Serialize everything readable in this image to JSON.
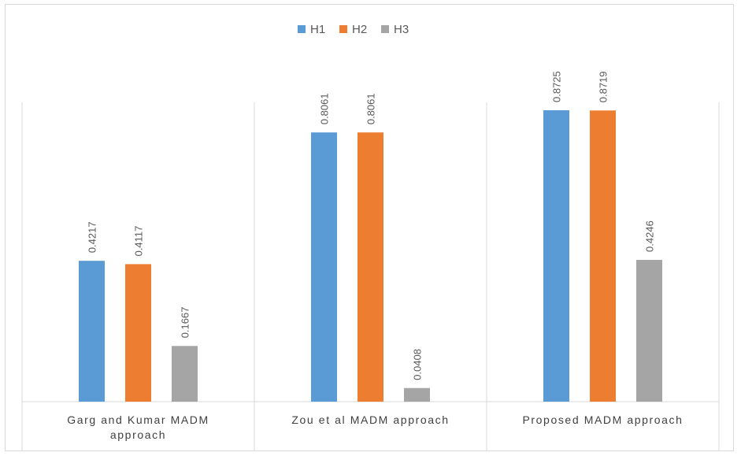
{
  "chart_data": {
    "type": "bar",
    "categories": [
      [
        "Garg and Kumar MADM",
        "approach"
      ],
      [
        "Zou et al MADM approach"
      ],
      [
        "Proposed MADM approach"
      ]
    ],
    "series": [
      {
        "name": "H1",
        "color": "#5b9bd5",
        "values": [
          0.4217,
          0.8061,
          0.8725
        ]
      },
      {
        "name": "H2",
        "color": "#ed7d31",
        "values": [
          0.4117,
          0.8061,
          0.8719
        ]
      },
      {
        "name": "H3",
        "color": "#a5a5a5",
        "values": [
          0.1667,
          0.0408,
          0.4246
        ]
      }
    ],
    "value_labels": [
      [
        "0.4217",
        "0.8061",
        "0.8725"
      ],
      [
        "0.4117",
        "0.8061",
        "0.8719"
      ],
      [
        "0.1667",
        "0.0408",
        "0.4246"
      ]
    ],
    "ylim": [
      0,
      1.1
    ],
    "grid": false,
    "legend_position": "top",
    "title": "",
    "xlabel": "",
    "ylabel": ""
  }
}
